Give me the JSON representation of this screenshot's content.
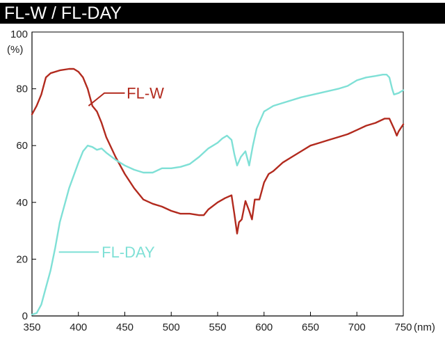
{
  "chart_data": {
    "type": "line",
    "title": "FL-W / FL-DAY",
    "xlabel": "(nm)",
    "ylabel": "(%)",
    "xlim": [
      350,
      750
    ],
    "ylim": [
      0,
      100
    ],
    "x_ticks": [
      "350",
      "400",
      "450",
      "500",
      "550",
      "600",
      "650",
      "700",
      "750"
    ],
    "y_ticks": [
      "0",
      "20",
      "40",
      "60",
      "80",
      "100"
    ],
    "grid": false,
    "series": [
      {
        "name": "FL-W",
        "color": "#b22a1e",
        "x": [
          350,
          355,
          360,
          365,
          370,
          380,
          390,
          395,
          400,
          405,
          410,
          415,
          420,
          425,
          430,
          440,
          450,
          460,
          470,
          480,
          490,
          500,
          510,
          515,
          520,
          530,
          535,
          540,
          550,
          558,
          565,
          568,
          571,
          573,
          576,
          580,
          584,
          587,
          590,
          595,
          600,
          605,
          610,
          620,
          630,
          640,
          650,
          660,
          670,
          680,
          690,
          700,
          710,
          720,
          730,
          735,
          740,
          743,
          745,
          750
        ],
        "values": [
          71,
          74,
          78,
          84,
          85.5,
          86.5,
          87,
          87,
          86,
          84,
          80,
          74,
          72,
          68,
          63,
          56,
          50,
          45,
          41,
          39.5,
          38.5,
          37,
          36,
          36,
          36,
          35.5,
          35.5,
          37.5,
          40,
          41.5,
          42.5,
          36,
          29,
          33,
          34,
          40.5,
          37,
          34,
          41,
          41,
          47,
          50,
          51,
          54,
          56,
          58,
          60,
          61,
          62,
          63,
          64,
          65.5,
          67,
          68,
          69.5,
          69.5,
          66,
          63.5,
          65,
          67.5
        ]
      },
      {
        "name": "FL-DAY",
        "color": "#7fe0d6",
        "x": [
          350,
          355,
          360,
          365,
          370,
          375,
          380,
          390,
          400,
          405,
          410,
          415,
          420,
          425,
          430,
          440,
          450,
          460,
          470,
          480,
          490,
          500,
          510,
          520,
          530,
          540,
          550,
          555,
          560,
          565,
          568,
          571,
          575,
          580,
          584,
          588,
          592,
          600,
          610,
          620,
          640,
          660,
          680,
          690,
          700,
          710,
          720,
          728,
          732,
          735,
          738,
          740,
          745,
          750
        ],
        "values": [
          0.5,
          1,
          4,
          10,
          16,
          24,
          33,
          45,
          54,
          58,
          60,
          59.5,
          58.5,
          59,
          57.5,
          55,
          53,
          51.5,
          50.5,
          50.5,
          52,
          52,
          52.5,
          53.5,
          56,
          59,
          61,
          62.5,
          63.5,
          62,
          57,
          53,
          56,
          58,
          53,
          60,
          66,
          72,
          74,
          75,
          77,
          78.5,
          80,
          81,
          83,
          84,
          84.5,
          85,
          85,
          84,
          80,
          78,
          78.5,
          79.5
        ]
      }
    ],
    "annotations": [
      {
        "text": "FL-W",
        "series": 0,
        "x": 420,
        "y": 78.5
      },
      {
        "text": "FL-DAY",
        "series": 1,
        "x": 378,
        "y": 22.5
      }
    ]
  }
}
